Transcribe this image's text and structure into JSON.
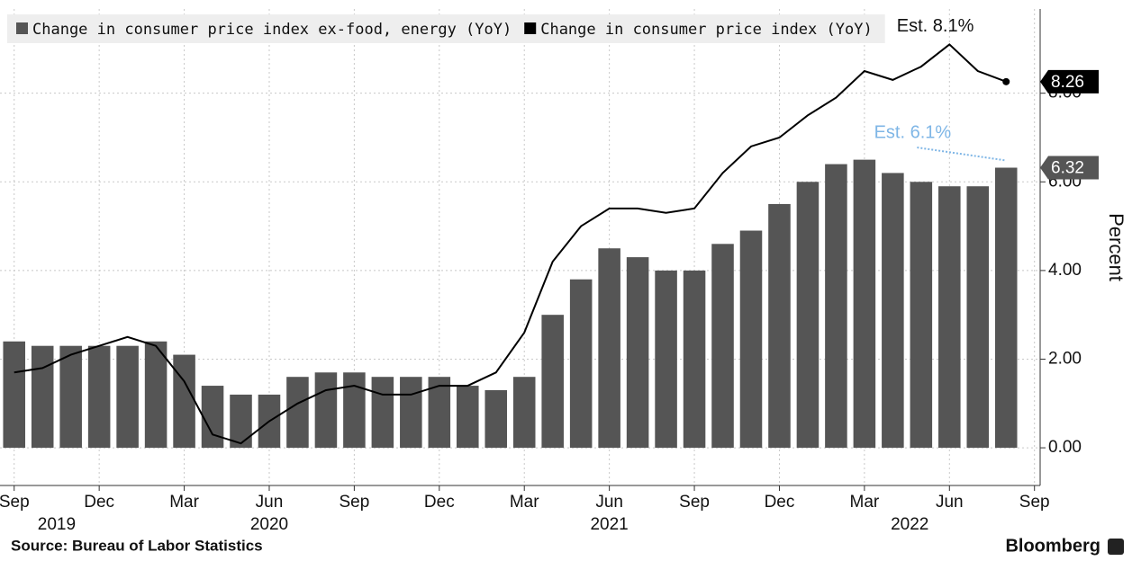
{
  "chart_data": {
    "type": "bar_line",
    "source": "Source: Bureau of Labor Statistics",
    "brand": "Bloomberg",
    "y_axis_label": "Percent",
    "categories_count_note_free": null,
    "series": [
      {
        "name": "Change in consumer price index ex-food, energy (YoY)",
        "type": "bar",
        "color": "#555555",
        "values": [
          2.4,
          2.3,
          2.3,
          2.3,
          2.3,
          2.4,
          2.1,
          1.4,
          1.2,
          1.2,
          1.6,
          1.7,
          1.7,
          1.6,
          1.6,
          1.6,
          1.4,
          1.3,
          1.6,
          3.0,
          3.8,
          4.5,
          4.3,
          4.0,
          4.0,
          4.6,
          4.9,
          5.5,
          6.0,
          6.4,
          6.5,
          6.2,
          6.0,
          5.9,
          5.9,
          6.32
        ]
      },
      {
        "name": "Change in consumer price index (YoY)",
        "type": "line",
        "color": "#000000",
        "values": [
          1.7,
          1.8,
          2.1,
          2.3,
          2.5,
          2.3,
          1.5,
          0.3,
          0.1,
          0.6,
          1.0,
          1.3,
          1.4,
          1.2,
          1.2,
          1.4,
          1.4,
          1.7,
          2.6,
          4.2,
          5.0,
          5.4,
          5.4,
          5.3,
          5.4,
          6.2,
          6.8,
          7.0,
          7.5,
          7.9,
          8.5,
          8.3,
          8.6,
          9.1,
          8.5,
          8.26
        ]
      }
    ],
    "xlim": [
      -0.5,
      36.2
    ],
    "xticks": [
      {
        "value": 0,
        "label": "Sep"
      },
      {
        "value": 3,
        "label": "Dec"
      },
      {
        "value": 6,
        "label": "Mar"
      },
      {
        "value": 9,
        "label": "Jun"
      },
      {
        "value": 12,
        "label": "Sep"
      },
      {
        "value": 15,
        "label": "Dec"
      },
      {
        "value": 18,
        "label": "Mar"
      },
      {
        "value": 21,
        "label": "Jun"
      },
      {
        "value": 24,
        "label": "Sep"
      },
      {
        "value": 27,
        "label": "Dec"
      },
      {
        "value": 30,
        "label": "Mar"
      },
      {
        "value": 33,
        "label": "Jun"
      },
      {
        "value": 36,
        "label": "Sep"
      }
    ],
    "year_labels": [
      {
        "value": 1.5,
        "label": "2019"
      },
      {
        "value": 9,
        "label": "2020"
      },
      {
        "value": 21,
        "label": "2021"
      },
      {
        "value": 31.6,
        "label": "2022"
      }
    ],
    "ylim": [
      -0.85,
      9.9
    ],
    "yticks": [
      {
        "value": 0,
        "label": "0.00"
      },
      {
        "value": 2,
        "label": "2.00"
      },
      {
        "value": 4,
        "label": "4.00"
      },
      {
        "value": 6,
        "label": "6.00"
      },
      {
        "value": 8,
        "label": "8.00"
      }
    ],
    "grid": true,
    "annotations": [
      {
        "text": "Est. 8.1%",
        "color": "#111111",
        "x": 32.5,
        "y": 9.5
      },
      {
        "text": "Est. 6.1%",
        "color": "#7fb6e6",
        "x": 31.7,
        "y": 7.1
      }
    ]
  }
}
